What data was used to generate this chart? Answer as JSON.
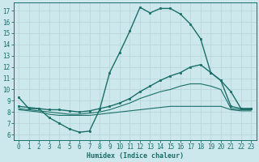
{
  "xlabel": "Humidex (Indice chaleur)",
  "xlim": [
    -0.5,
    23.5
  ],
  "ylim": [
    5.5,
    17.7
  ],
  "xticks": [
    0,
    1,
    2,
    3,
    4,
    5,
    6,
    7,
    8,
    9,
    10,
    11,
    12,
    13,
    14,
    15,
    16,
    17,
    18,
    19,
    20,
    21,
    22,
    23
  ],
  "yticks": [
    6,
    7,
    8,
    9,
    10,
    11,
    12,
    13,
    14,
    15,
    16,
    17
  ],
  "bg_color": "#cde8ec",
  "line_color": "#1a6e68",
  "grid_color": "#b8d8dc",
  "series": [
    {
      "x": [
        0,
        1,
        2,
        3,
        4,
        5,
        6,
        7,
        8,
        9,
        10,
        11,
        12,
        13,
        14,
        15,
        16,
        17,
        18,
        19,
        20,
        21,
        22,
        23
      ],
      "y": [
        9.3,
        8.3,
        8.3,
        7.5,
        7.0,
        6.5,
        6.2,
        6.3,
        8.2,
        11.5,
        13.3,
        15.2,
        17.3,
        16.8,
        17.2,
        17.2,
        16.7,
        15.8,
        14.5,
        11.5,
        10.8,
        9.8,
        8.3,
        8.3
      ],
      "markers": true,
      "lw": 1.0
    },
    {
      "x": [
        0,
        2,
        3,
        4,
        5,
        6,
        7,
        8,
        9,
        10,
        11,
        12,
        13,
        14,
        15,
        16,
        17,
        18,
        19,
        20,
        21,
        22,
        23
      ],
      "y": [
        8.5,
        8.3,
        8.2,
        8.2,
        8.1,
        8.0,
        8.1,
        8.3,
        8.5,
        8.8,
        9.2,
        9.8,
        10.3,
        10.8,
        11.2,
        11.5,
        12.0,
        12.2,
        11.5,
        10.8,
        8.5,
        8.3,
        8.3
      ],
      "markers": true,
      "lw": 1.0
    },
    {
      "x": [
        0,
        1,
        2,
        3,
        4,
        5,
        6,
        7,
        8,
        9,
        10,
        11,
        12,
        13,
        14,
        15,
        16,
        17,
        18,
        19,
        20,
        21,
        22,
        23
      ],
      "y": [
        8.3,
        8.2,
        8.1,
        8.0,
        7.9,
        7.8,
        7.8,
        7.9,
        8.0,
        8.2,
        8.5,
        8.8,
        9.2,
        9.5,
        9.8,
        10.0,
        10.3,
        10.5,
        10.5,
        10.3,
        10.0,
        8.3,
        8.2,
        8.2
      ],
      "markers": false,
      "lw": 0.8
    },
    {
      "x": [
        0,
        1,
        2,
        3,
        4,
        5,
        6,
        7,
        8,
        9,
        10,
        11,
        12,
        13,
        14,
        15,
        16,
        17,
        18,
        19,
        20,
        21,
        22,
        23
      ],
      "y": [
        8.2,
        8.1,
        8.0,
        7.8,
        7.7,
        7.7,
        7.7,
        7.7,
        7.8,
        7.9,
        8.0,
        8.1,
        8.2,
        8.3,
        8.4,
        8.5,
        8.5,
        8.5,
        8.5,
        8.5,
        8.5,
        8.2,
        8.1,
        8.1
      ],
      "markers": false,
      "lw": 0.8
    }
  ]
}
